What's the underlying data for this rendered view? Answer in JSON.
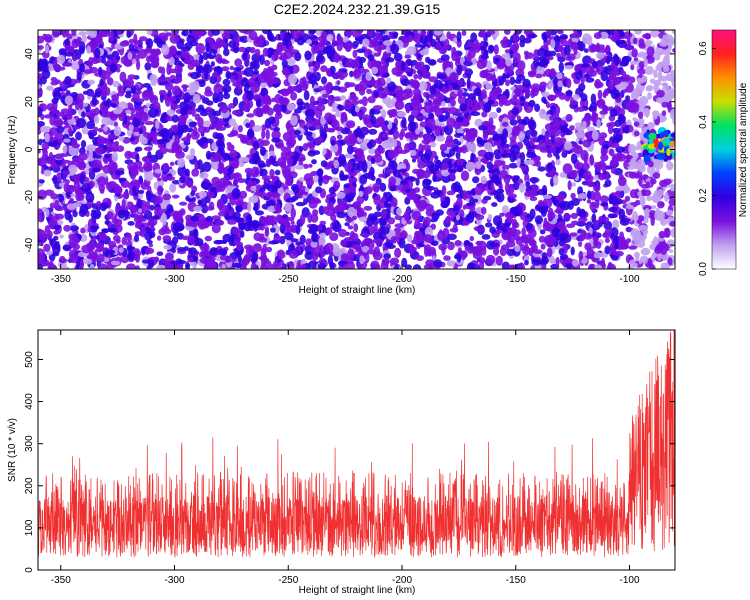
{
  "title": "C2E2.2024.232.21.39.G15",
  "colors": {
    "snr_line": "#f03030",
    "colormap": [
      "#ffffff",
      "#c0a0f0",
      "#7a10e0",
      "#3000e0",
      "#0040ff",
      "#00d0e0",
      "#00e060",
      "#c8e000",
      "#ff9000",
      "#ff2020",
      "#ff1080"
    ]
  },
  "chart_data": [
    {
      "type": "heatmap",
      "name": "spectrogram",
      "xlabel": "Height of straight line (km)",
      "ylabel": "Frequency (Hz)",
      "xlim": [
        -360,
        -80
      ],
      "ylim": [
        -50,
        50
      ],
      "xticks": [
        -350,
        -300,
        -250,
        -200,
        -150,
        -100
      ],
      "yticks": [
        -40,
        -20,
        0,
        20,
        40
      ],
      "colorbar": {
        "label": "Normalized spectral amplitude",
        "range": [
          0,
          0.65
        ],
        "ticks": [
          0.0,
          0.2,
          0.4,
          0.6
        ]
      },
      "background_amplitude": [
        0.05,
        0.15
      ],
      "signal": {
        "x_range": [
          -100,
          -80
        ],
        "y_center": 2,
        "peak_amplitude": 0.65
      }
    },
    {
      "type": "line",
      "name": "snr",
      "xlabel": "Height of straight line (km)",
      "ylabel": "SNR (10 * v/v)",
      "xlim": [
        -360,
        -80
      ],
      "ylim": [
        0,
        570
      ],
      "xticks": [
        -350,
        -300,
        -250,
        -200,
        -150,
        -100
      ],
      "yticks": [
        0,
        100,
        200,
        300,
        400,
        500
      ],
      "baseline_mean": 120,
      "baseline_spread": [
        30,
        320
      ],
      "end_rise": {
        "x_range": [
          -100,
          -80
        ],
        "max": 570
      }
    }
  ]
}
